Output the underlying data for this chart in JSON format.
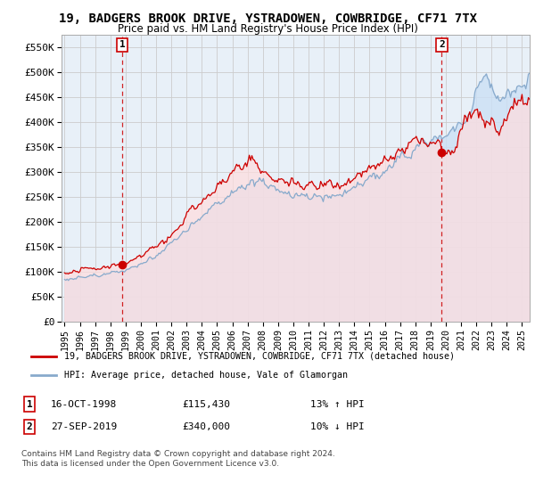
{
  "title": "19, BADGERS BROOK DRIVE, YSTRADOWEN, COWBRIDGE, CF71 7TX",
  "subtitle": "Price paid vs. HM Land Registry's House Price Index (HPI)",
  "xlim": [
    1994.8,
    2025.5
  ],
  "ylim": [
    0,
    575000
  ],
  "yticks": [
    0,
    50000,
    100000,
    150000,
    200000,
    250000,
    300000,
    350000,
    400000,
    450000,
    500000,
    550000
  ],
  "ytick_labels": [
    "£0",
    "£50K",
    "£100K",
    "£150K",
    "£200K",
    "£250K",
    "£300K",
    "£350K",
    "£400K",
    "£450K",
    "£500K",
    "£550K"
  ],
  "xticks": [
    1995,
    1996,
    1997,
    1998,
    1999,
    2000,
    2001,
    2002,
    2003,
    2004,
    2005,
    2006,
    2007,
    2008,
    2009,
    2010,
    2011,
    2012,
    2013,
    2014,
    2015,
    2016,
    2017,
    2018,
    2019,
    2020,
    2021,
    2022,
    2023,
    2024,
    2025
  ],
  "sale1_x": 1998.79,
  "sale1_y": 115430,
  "sale2_x": 2019.74,
  "sale2_y": 340000,
  "sale1_date": "16-OCT-1998",
  "sale1_price": "£115,430",
  "sale1_hpi": "13% ↑ HPI",
  "sale2_date": "27-SEP-2019",
  "sale2_price": "£340,000",
  "sale2_hpi": "10% ↓ HPI",
  "line1_color": "#cc0000",
  "line2_color": "#88aacc",
  "fill1_color": "#ffdddd",
  "fill2_color": "#cce0f5",
  "grid_color": "#cccccc",
  "bg_color": "#e8f0f8",
  "legend1_label": "19, BADGERS BROOK DRIVE, YSTRADOWEN, COWBRIDGE, CF71 7TX (detached house)",
  "legend2_label": "HPI: Average price, detached house, Vale of Glamorgan",
  "footnote": "Contains HM Land Registry data © Crown copyright and database right 2024.\nThis data is licensed under the Open Government Licence v3.0."
}
